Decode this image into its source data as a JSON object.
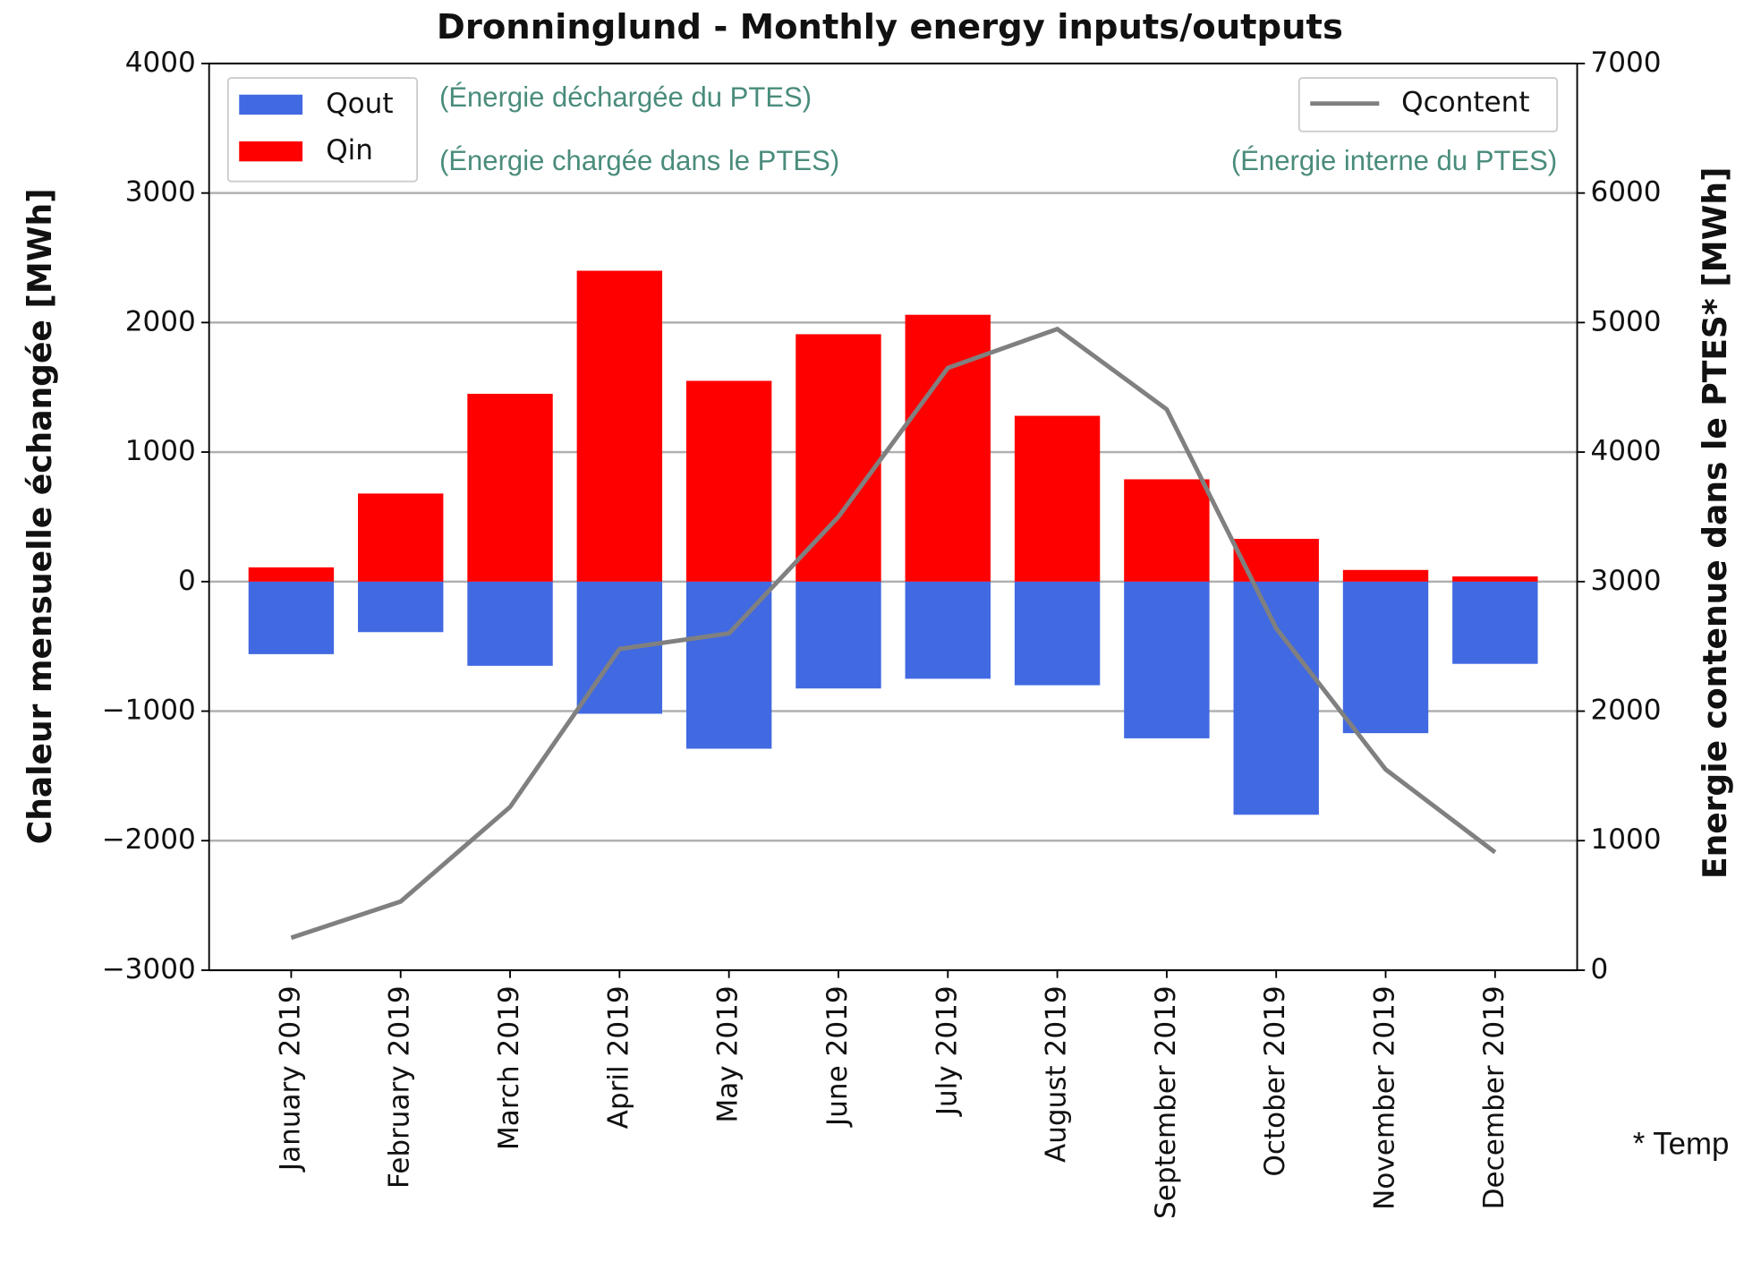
{
  "chart_data": {
    "type": "bar",
    "title": "Dronninglund - Monthly energy inputs/outputs",
    "ylabel": "Chaleur mensuelle échangée [MWh]",
    "y2label": "Energie contenue dans le PTES* [MWh]",
    "categories": [
      "January 2019",
      "February 2019",
      "March 2019",
      "April 2019",
      "May 2019",
      "June 2019",
      "July 2019",
      "August 2019",
      "September 2019",
      "October 2019",
      "November 2019",
      "December 2019"
    ],
    "series": [
      {
        "name": "Qout",
        "color": "#4169e1",
        "type": "bar",
        "values": [
          -560,
          -390,
          -650,
          -1020,
          -1290,
          -825,
          -750,
          -800,
          -1210,
          -1800,
          -1170,
          -635
        ]
      },
      {
        "name": "Qin",
        "color": "#ff0000",
        "type": "bar",
        "values": [
          110,
          680,
          1450,
          2400,
          1550,
          1910,
          2060,
          1280,
          790,
          330,
          90,
          40
        ]
      },
      {
        "name": "Qcontent",
        "color": "#808080",
        "type": "line",
        "axis": "y2",
        "values": [
          250,
          530,
          1260,
          2480,
          2600,
          3500,
          4650,
          4950,
          4330,
          2640,
          1550,
          910
        ]
      }
    ],
    "ylim": [
      -3000,
      4000
    ],
    "yticks": [
      {
        "value": -3000,
        "label": "−3000"
      },
      {
        "value": -2000,
        "label": "−2000"
      },
      {
        "value": -1000,
        "label": "−1000"
      },
      0,
      1000,
      2000,
      3000,
      4000
    ],
    "y2lim": [
      0,
      7000
    ],
    "y2ticks": [
      0,
      1000,
      2000,
      3000,
      4000,
      5000,
      6000,
      7000
    ],
    "grid": true,
    "legend_loc": "upper left",
    "legend2_loc": "upper right",
    "annotations": [
      "(Énergie déchargée du PTES)",
      "(Énergie chargée dans le PTES)",
      "(Énergie interne du PTES)"
    ],
    "footnote": "* Temp"
  }
}
